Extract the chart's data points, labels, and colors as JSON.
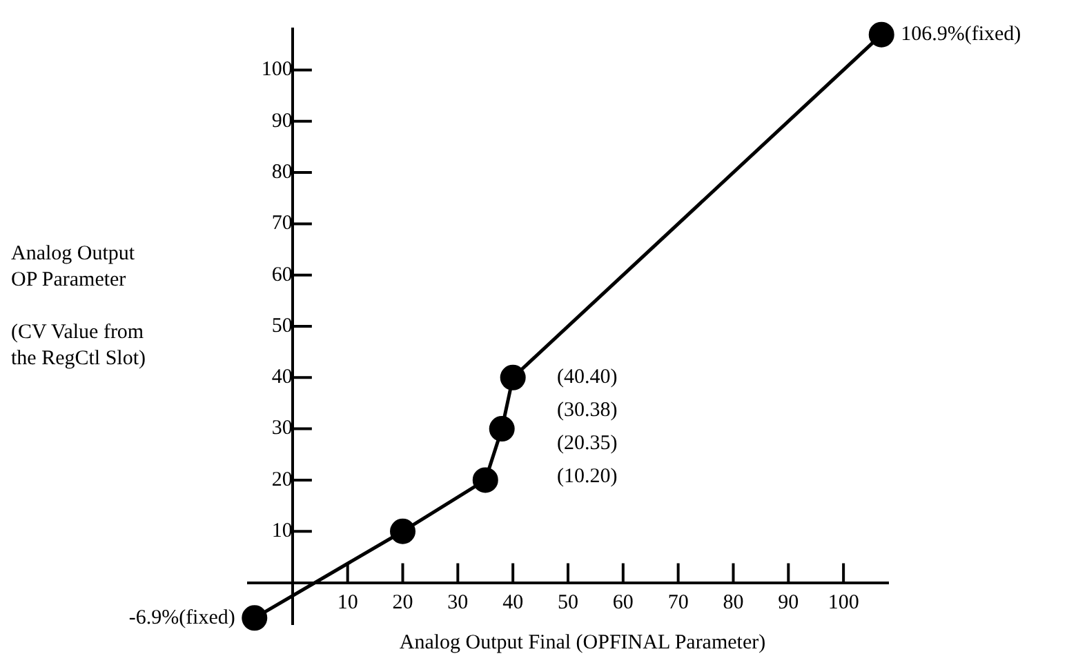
{
  "chart_data": {
    "type": "line",
    "xlabel": "Analog Output Final (OPFINAL Parameter)",
    "ylabel": "Analog Output\nOP Parameter\n\n(CV Value from\nthe RegCtl Slot)",
    "x": [
      -6.9,
      20,
      35,
      38,
      40,
      106.9
    ],
    "series": [
      {
        "color": "#000000",
        "values": [
          -6.9,
          10,
          20,
          30,
          40,
          106.9
        ]
      }
    ],
    "xlim": [
      -8,
      108
    ],
    "ylim": [
      -8,
      108
    ],
    "xticks": [
      10,
      20,
      30,
      40,
      50,
      60,
      70,
      80,
      90,
      100
    ],
    "yticks": [
      10,
      20,
      30,
      40,
      50,
      60,
      70,
      80,
      90,
      100
    ],
    "grid": false,
    "legend": false,
    "marker": "circle",
    "line_style": "solid",
    "annotations": [
      {
        "text": "-6.9%(fixed)",
        "x": -6.9,
        "y": -6.9
      },
      {
        "text": "106.9%(fixed)",
        "x": 106.9,
        "y": 106.9
      },
      "(40.40)",
      "(30.38)",
      "(20.35)",
      "(10.20)"
    ]
  }
}
